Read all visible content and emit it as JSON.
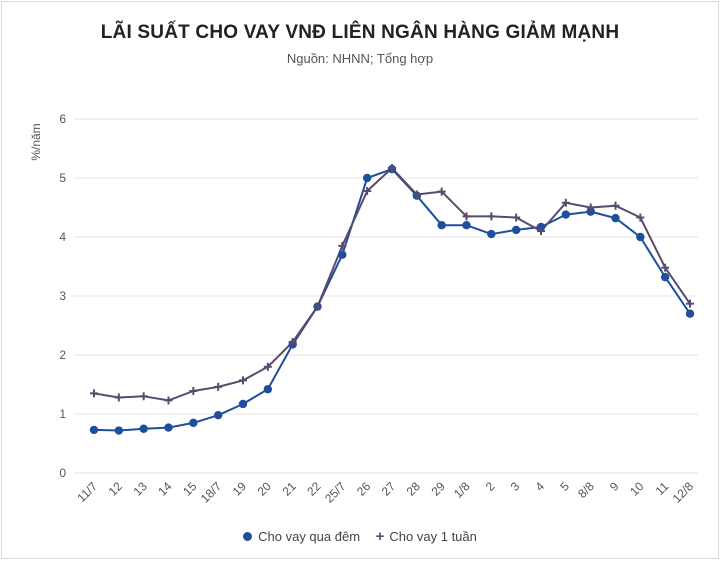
{
  "chart_data": {
    "type": "line",
    "title": "LÃI SUẤT CHO VAY VNĐ LIÊN NGÂN HÀNG GIẢM MẠNH",
    "subtitle": "Nguồn: NHNN; Tổng hợp",
    "ylabel": "%/năm",
    "xlabel": "",
    "ylim": [
      0,
      6
    ],
    "yticks": [
      "0",
      "1",
      "2",
      "3",
      "4",
      "5",
      "6"
    ],
    "grid": "horizontal",
    "legend": "bottom",
    "categories": [
      "11/7",
      "12",
      "13",
      "14",
      "15",
      "18/7",
      "19",
      "20",
      "21",
      "22",
      "25/7",
      "26",
      "27",
      "28",
      "29",
      "1/8",
      "2",
      "3",
      "4",
      "5",
      "8/8",
      "9",
      "10",
      "11",
      "12/8"
    ],
    "series": [
      {
        "name": "Cho vay qua đêm",
        "color": "#1f4e9c",
        "marker": "dot",
        "values": [
          0.73,
          0.72,
          0.75,
          0.77,
          0.85,
          0.98,
          1.17,
          1.42,
          2.18,
          2.82,
          3.7,
          5.0,
          5.15,
          4.7,
          4.2,
          4.2,
          4.05,
          4.12,
          4.17,
          4.38,
          4.43,
          4.32,
          4.0,
          3.32,
          2.7
        ]
      },
      {
        "name": "Cho vay 1 tuần",
        "color": "#5a4a6e",
        "marker": "plus",
        "values": [
          1.35,
          1.28,
          1.3,
          1.23,
          1.39,
          1.46,
          1.57,
          1.8,
          2.22,
          2.82,
          3.85,
          4.78,
          5.17,
          4.72,
          4.77,
          4.35,
          4.35,
          4.33,
          4.1,
          4.58,
          4.5,
          4.53,
          4.33,
          3.48,
          2.87
        ]
      }
    ]
  }
}
